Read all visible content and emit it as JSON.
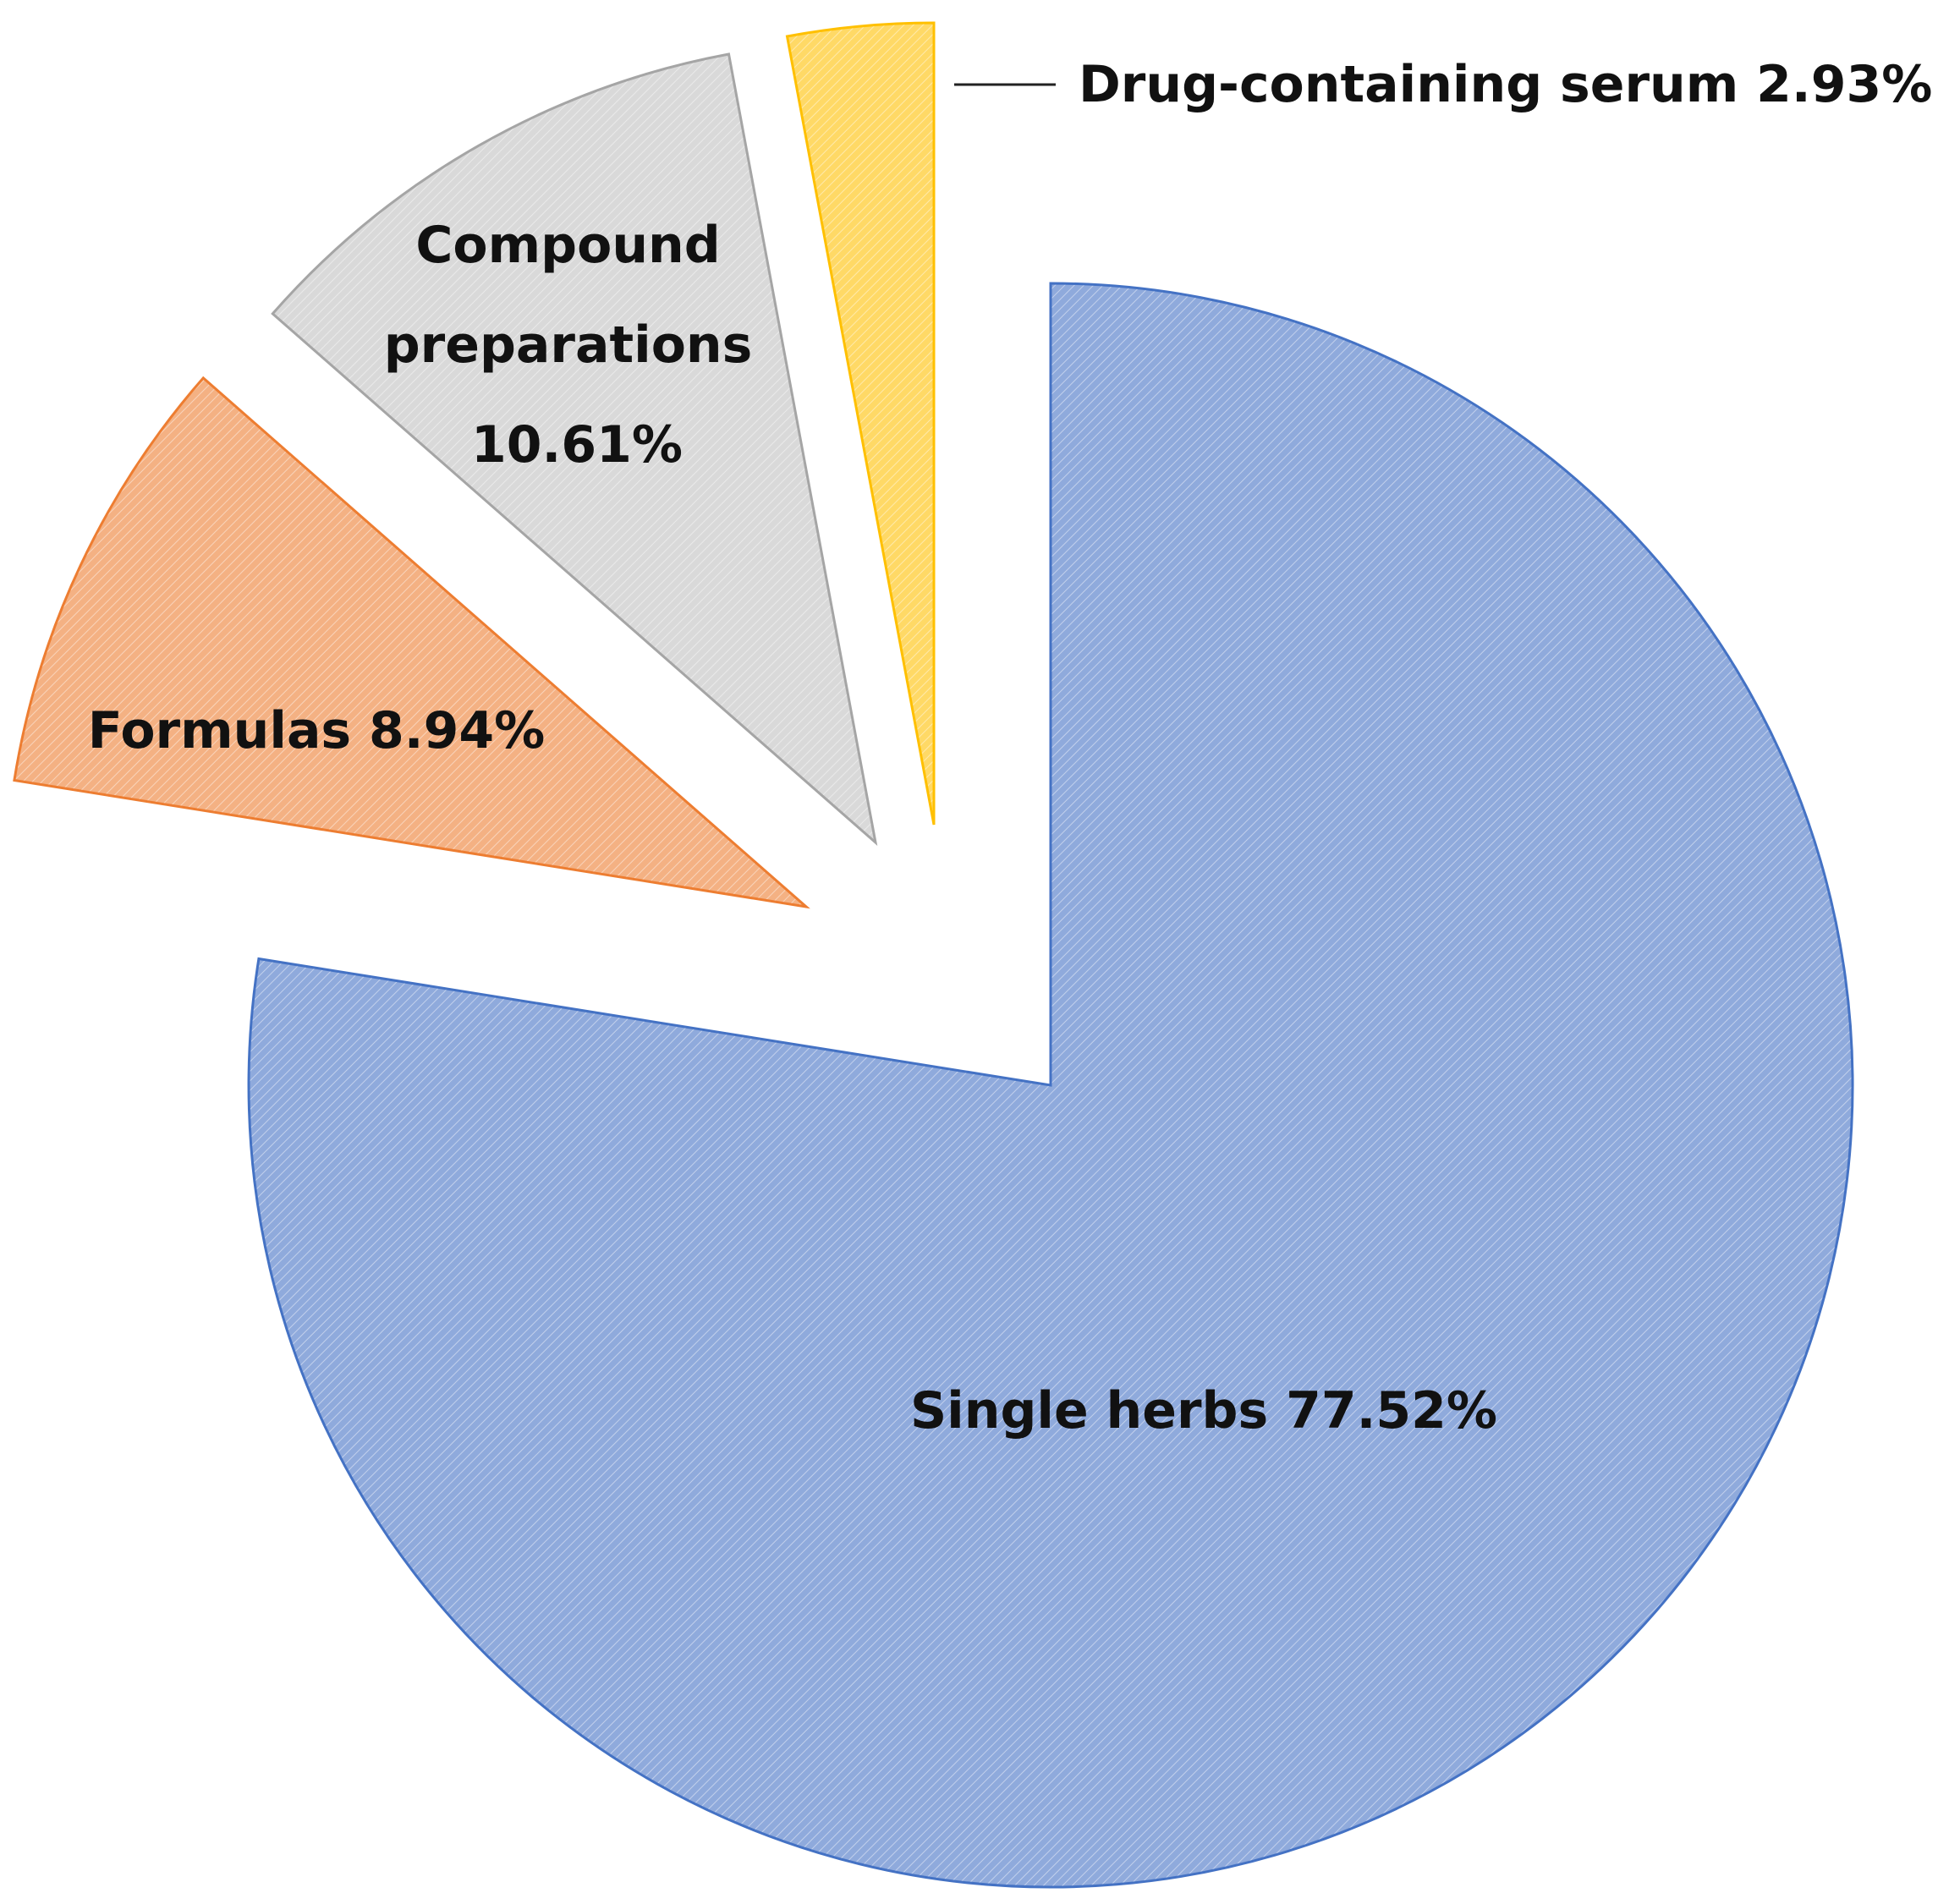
{
  "chart_data": {
    "type": "pie",
    "start_angle_deg": 0,
    "direction": "clockwise",
    "exploded": true,
    "slices": [
      {
        "name": "Single herbs",
        "value": 77.52,
        "label": [
          "Single herbs 77.52%"
        ],
        "color": "#8FAADC",
        "stroke": "#4472C4"
      },
      {
        "name": "Formulas",
        "value": 8.94,
        "label": [
          "Formulas 8.94%"
        ],
        "color": "#F4B183",
        "stroke": "#ED7D31"
      },
      {
        "name": "Compound preparations",
        "value": 10.61,
        "label": [
          "Compound",
          "preparations",
          "10.61%"
        ],
        "color": "#D9D9D9",
        "stroke": "#A5A5A5"
      },
      {
        "name": "Drug-containing serum",
        "value": 2.93,
        "label": [
          "Drug-containing serum 2.93%"
        ],
        "color": "#FFD966",
        "stroke": "#FFC000"
      }
    ]
  }
}
